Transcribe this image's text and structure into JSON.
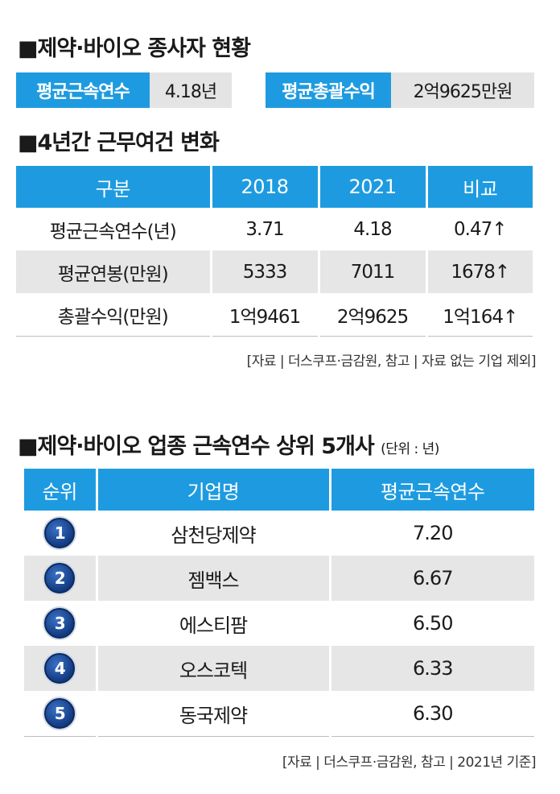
{
  "section1": {
    "title": "■제약·바이오 종사자 현황",
    "stats": [
      {
        "label": "평균근속연수",
        "value": "4.18년"
      },
      {
        "label": "평균총괄수익",
        "value": "2억9625만원"
      }
    ]
  },
  "section2": {
    "title": "■4년간 근무여건 변화",
    "headers": [
      "구분",
      "2018",
      "2021",
      "비교"
    ],
    "rows": [
      [
        "평균근속연수(년)",
        "3.71",
        "4.18",
        "0.47↑"
      ],
      [
        "평균연봉(만원)",
        "5333",
        "7011",
        "1678↑"
      ],
      [
        "총괄수익(만원)",
        "1억9461",
        "2억9625",
        "1억164↑"
      ]
    ],
    "source": "[자료 | 더스쿠프·금감원, 참고 | 자료 없는 기업 제외]"
  },
  "section3": {
    "title": "■제약·바이오 업종 근속연수 상위 5개사",
    "unit": "(단위 : 년)",
    "headers": [
      "순위",
      "기업명",
      "평균근속연수"
    ],
    "rows": [
      {
        "rank": "1",
        "company": "삼천당제약",
        "years": "7.20"
      },
      {
        "rank": "2",
        "company": "젬백스",
        "years": "6.67"
      },
      {
        "rank": "3",
        "company": "에스티팜",
        "years": "6.50"
      },
      {
        "rank": "4",
        "company": "오스코텍",
        "years": "6.33"
      },
      {
        "rank": "5",
        "company": "동국제약",
        "years": "6.30"
      }
    ],
    "source": "[자료 | 더스쿠프·금감원, 참고 | 2021년 기준]"
  },
  "colors": {
    "accent": "#1e9be0",
    "band": "#e6e6e6",
    "rank_badge": "#1a4a9c"
  }
}
